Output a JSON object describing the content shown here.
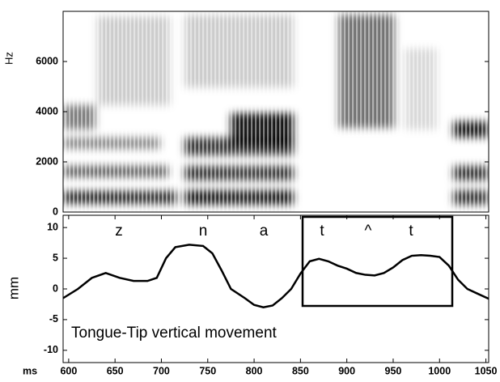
{
  "chart_data": [
    {
      "type": "spectrogram",
      "ylabel": "Hz",
      "xlim": [
        594,
        1053
      ],
      "ylim": [
        0,
        8000
      ],
      "yticks": [
        0,
        2000,
        4000,
        6000
      ]
    },
    {
      "type": "line",
      "ylabel": "mm",
      "xlabel": "ms",
      "annotation": "Tongue-Tip vertical movement",
      "segment_labels": [
        "z",
        "n",
        "a",
        "t",
        "^",
        "t"
      ],
      "xlim": [
        594,
        1053
      ],
      "ylim": [
        -12,
        12
      ],
      "xticks": [
        600,
        650,
        700,
        750,
        800,
        850,
        900,
        950,
        1000,
        1050
      ],
      "yticks": [
        -10,
        -5,
        0,
        5,
        10
      ],
      "series": [
        {
          "color": "#000000",
          "x": [
            594,
            610,
            625,
            640,
            655,
            670,
            685,
            695,
            705,
            715,
            730,
            745,
            755,
            765,
            775,
            790,
            800,
            810,
            820,
            830,
            840,
            850,
            860,
            870,
            880,
            890,
            900,
            910,
            920,
            930,
            940,
            950,
            960,
            970,
            980,
            990,
            1000,
            1010,
            1020,
            1030,
            1040,
            1053
          ],
          "values": [
            -1.5,
            0,
            1.8,
            2.6,
            1.8,
            1.3,
            1.3,
            1.8,
            5,
            6.8,
            7.2,
            7,
            5.8,
            3,
            0,
            -1.5,
            -2.6,
            -3,
            -2.7,
            -1.5,
            0,
            2.5,
            4.5,
            4.9,
            4.5,
            3.8,
            3.3,
            2.6,
            2.3,
            2.2,
            2.6,
            3.5,
            4.7,
            5.4,
            5.5,
            5.4,
            5.2,
            3.8,
            1.5,
            0,
            -0.7,
            -1.6
          ]
        }
      ]
    }
  ]
}
